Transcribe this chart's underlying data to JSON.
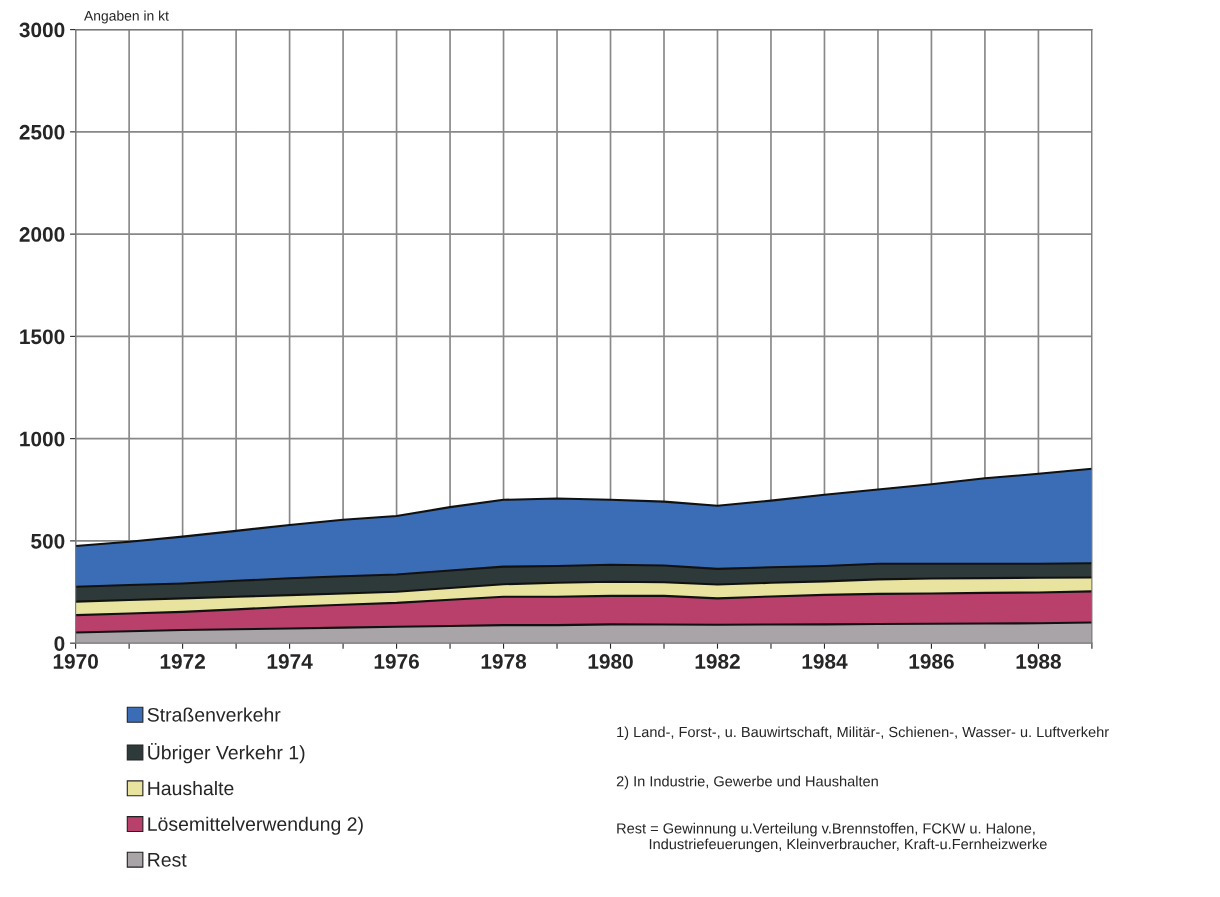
{
  "chart_data": {
    "type": "area",
    "stacked": true,
    "ylabel": "Angaben in kt",
    "x": [
      1970,
      1971,
      1972,
      1973,
      1974,
      1975,
      1976,
      1977,
      1978,
      1979,
      1980,
      1981,
      1982,
      1983,
      1984,
      1985,
      1986,
      1987,
      1988,
      1989
    ],
    "series": [
      {
        "name": "Rest",
        "color": "#a8a4a8",
        "values": [
          52,
          58,
          64,
          68,
          72,
          76,
          80,
          84,
          88,
          88,
          92,
          91,
          90,
          91,
          92,
          94,
          95,
          96,
          97,
          101
        ]
      },
      {
        "name": "Lösemittelverwendung 2)",
        "color": "#b8406a",
        "values": [
          85,
          87,
          89,
          97,
          106,
          112,
          117,
          128,
          139,
          139,
          139,
          140,
          129,
          137,
          144,
          147,
          148,
          150,
          151,
          152
        ]
      },
      {
        "name": "Haushalte",
        "color": "#e8e4a0",
        "values": [
          66,
          66,
          66,
          62,
          57,
          55,
          54,
          58,
          61,
          68,
          69,
          67,
          68,
          67,
          66,
          71,
          73,
          72,
          72,
          68
        ]
      },
      {
        "name": "Übriger Verkehr 1)",
        "color": "#2e3a3a",
        "values": [
          73,
          73,
          73,
          78,
          82,
          84,
          85,
          85,
          86,
          82,
          83,
          82,
          76,
          76,
          75,
          76,
          72,
          70,
          68,
          70
        ]
      },
      {
        "name": "Straßenverkehr",
        "color": "#3a6db5",
        "values": [
          199,
          212,
          229,
          244,
          261,
          276,
          286,
          310,
          327,
          330,
          318,
          312,
          309,
          326,
          349,
          363,
          389,
          418,
          440,
          462
        ]
      }
    ],
    "xlim": [
      1970,
      1989
    ],
    "xticks": [
      1970,
      {
        "value": 1971,
        "label": null
      },
      1972,
      {
        "value": 1973,
        "label": null
      },
      1974,
      {
        "value": 1975,
        "label": null
      },
      1976,
      {
        "value": 1977,
        "label": null
      },
      1978,
      {
        "value": 1979,
        "label": null
      },
      1980,
      {
        "value": 1981,
        "label": null
      },
      1982,
      {
        "value": 1983,
        "label": null
      },
      1984,
      {
        "value": 1985,
        "label": null
      },
      1986,
      {
        "value": 1987,
        "label": null
      },
      1988,
      {
        "value": 1989,
        "label": null
      }
    ],
    "ylim": [
      0,
      3000
    ],
    "yticks": [
      0,
      500,
      1000,
      1500,
      2000,
      2500,
      3000
    ],
    "grid": true,
    "legend": "bottom left",
    "annotations": [
      "1) Land-, Forst-, u. Bauwirtschaft, Militär-, Schienen-, Wasser- u. Luftverkehr",
      "2) In Industrie, Gewerbe und Haushalten",
      "Rest = Gewinnung u.Verteilung v.Brennstoffen, FCKW u. Halone,\n        Industriefeuerungen, Kleinverbraucher, Kraft-u.Fernheizwerke"
    ]
  }
}
